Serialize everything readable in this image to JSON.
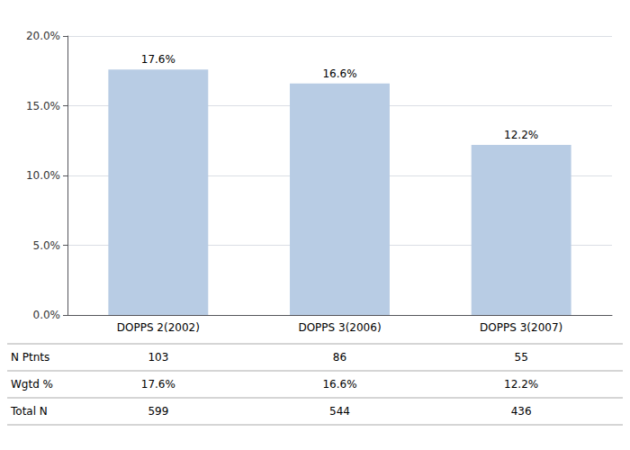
{
  "chart_data": {
    "type": "bar",
    "categories": [
      "DOPPS 2(2002)",
      "DOPPS 3(2006)",
      "DOPPS 3(2007)"
    ],
    "values": [
      17.6,
      16.6,
      12.2
    ],
    "value_labels": [
      "17.6%",
      "16.6%",
      "12.2%"
    ],
    "data_labels": true,
    "color": "#b8cce4",
    "ylim": [
      0,
      20
    ],
    "yticks": [
      {
        "value": 0,
        "label": "0.0%"
      },
      {
        "value": 5.0,
        "label": "5.0%"
      },
      {
        "value": 10.0,
        "label": "10.0%"
      },
      {
        "value": 15.0,
        "label": "15.0%"
      },
      {
        "value": 20.0,
        "label": "20.0%"
      }
    ],
    "grid": true,
    "table_rows": [
      {
        "name": "N Ptnts",
        "values": [
          "103",
          "86",
          "55"
        ]
      },
      {
        "name": "Wgtd %",
        "values": [
          "17.6%",
          "16.6%",
          "12.2%"
        ]
      },
      {
        "name": "Total N",
        "values": [
          "599",
          "544",
          "436"
        ]
      }
    ]
  }
}
